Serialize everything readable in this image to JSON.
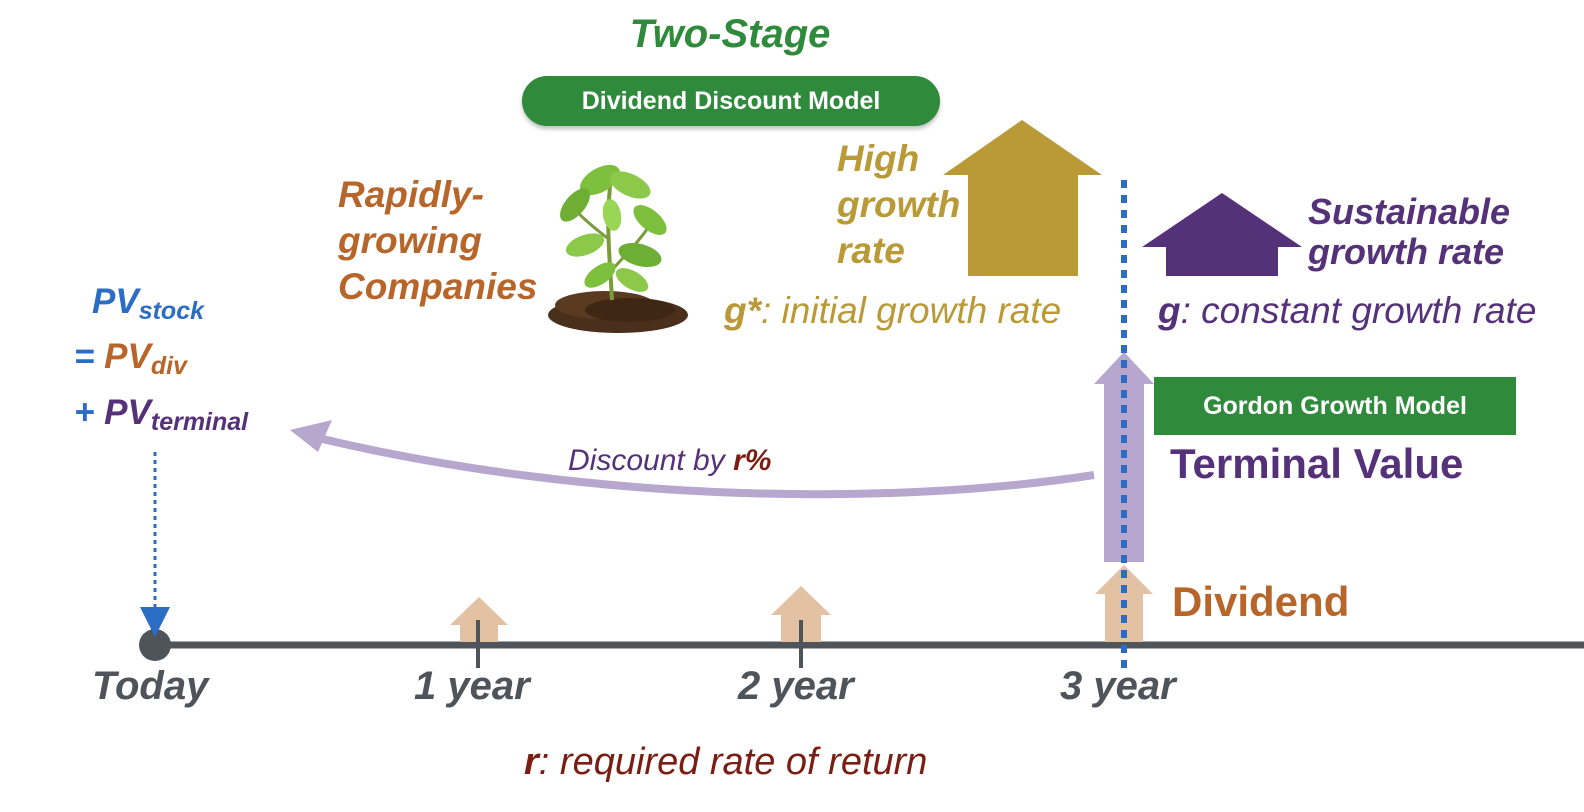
{
  "title": "Two-Stage",
  "model_pill": "Dividend Discount Model",
  "rapid_label": [
    "Rapidly-",
    "growing",
    "Companies"
  ],
  "high_label": [
    "High",
    "growth",
    "rate"
  ],
  "sustainable_label": [
    "Sustainable",
    "growth rate"
  ],
  "initial_rate": {
    "symbol": "g*",
    "text": ": initial growth rate"
  },
  "constant_rate": {
    "symbol": "g",
    "text": ": constant growth rate"
  },
  "gordon_box": "Gordon Growth Model",
  "terminal_value": "Terminal Value",
  "dividend_label": "Dividend",
  "discount": {
    "prefix": "Discount by ",
    "rate": "r%"
  },
  "pv": {
    "main": "PV",
    "stock_sub": "stock",
    "eq": "= ",
    "div_main": "PV",
    "div_sub": "div",
    "plus": "+ ",
    "term_main": "PV",
    "term_sub": "terminal"
  },
  "timeline": {
    "ticks": [
      "Today",
      "1 year",
      "2 year",
      "3 year"
    ]
  },
  "required_rate": {
    "symbol": "r",
    "text": ": required rate of return"
  },
  "icons": {
    "plant": "sprout-icon"
  },
  "colors": {
    "green": "#2f8a3c",
    "orange": "#b8652a",
    "gold": "#b99a37",
    "purple": "#55317a",
    "blue": "#2b6cc4",
    "dark_red": "#7a1d13",
    "gray": "#4f535a",
    "tan": "#e3c2a3",
    "lavender": "#b7a6cd"
  }
}
